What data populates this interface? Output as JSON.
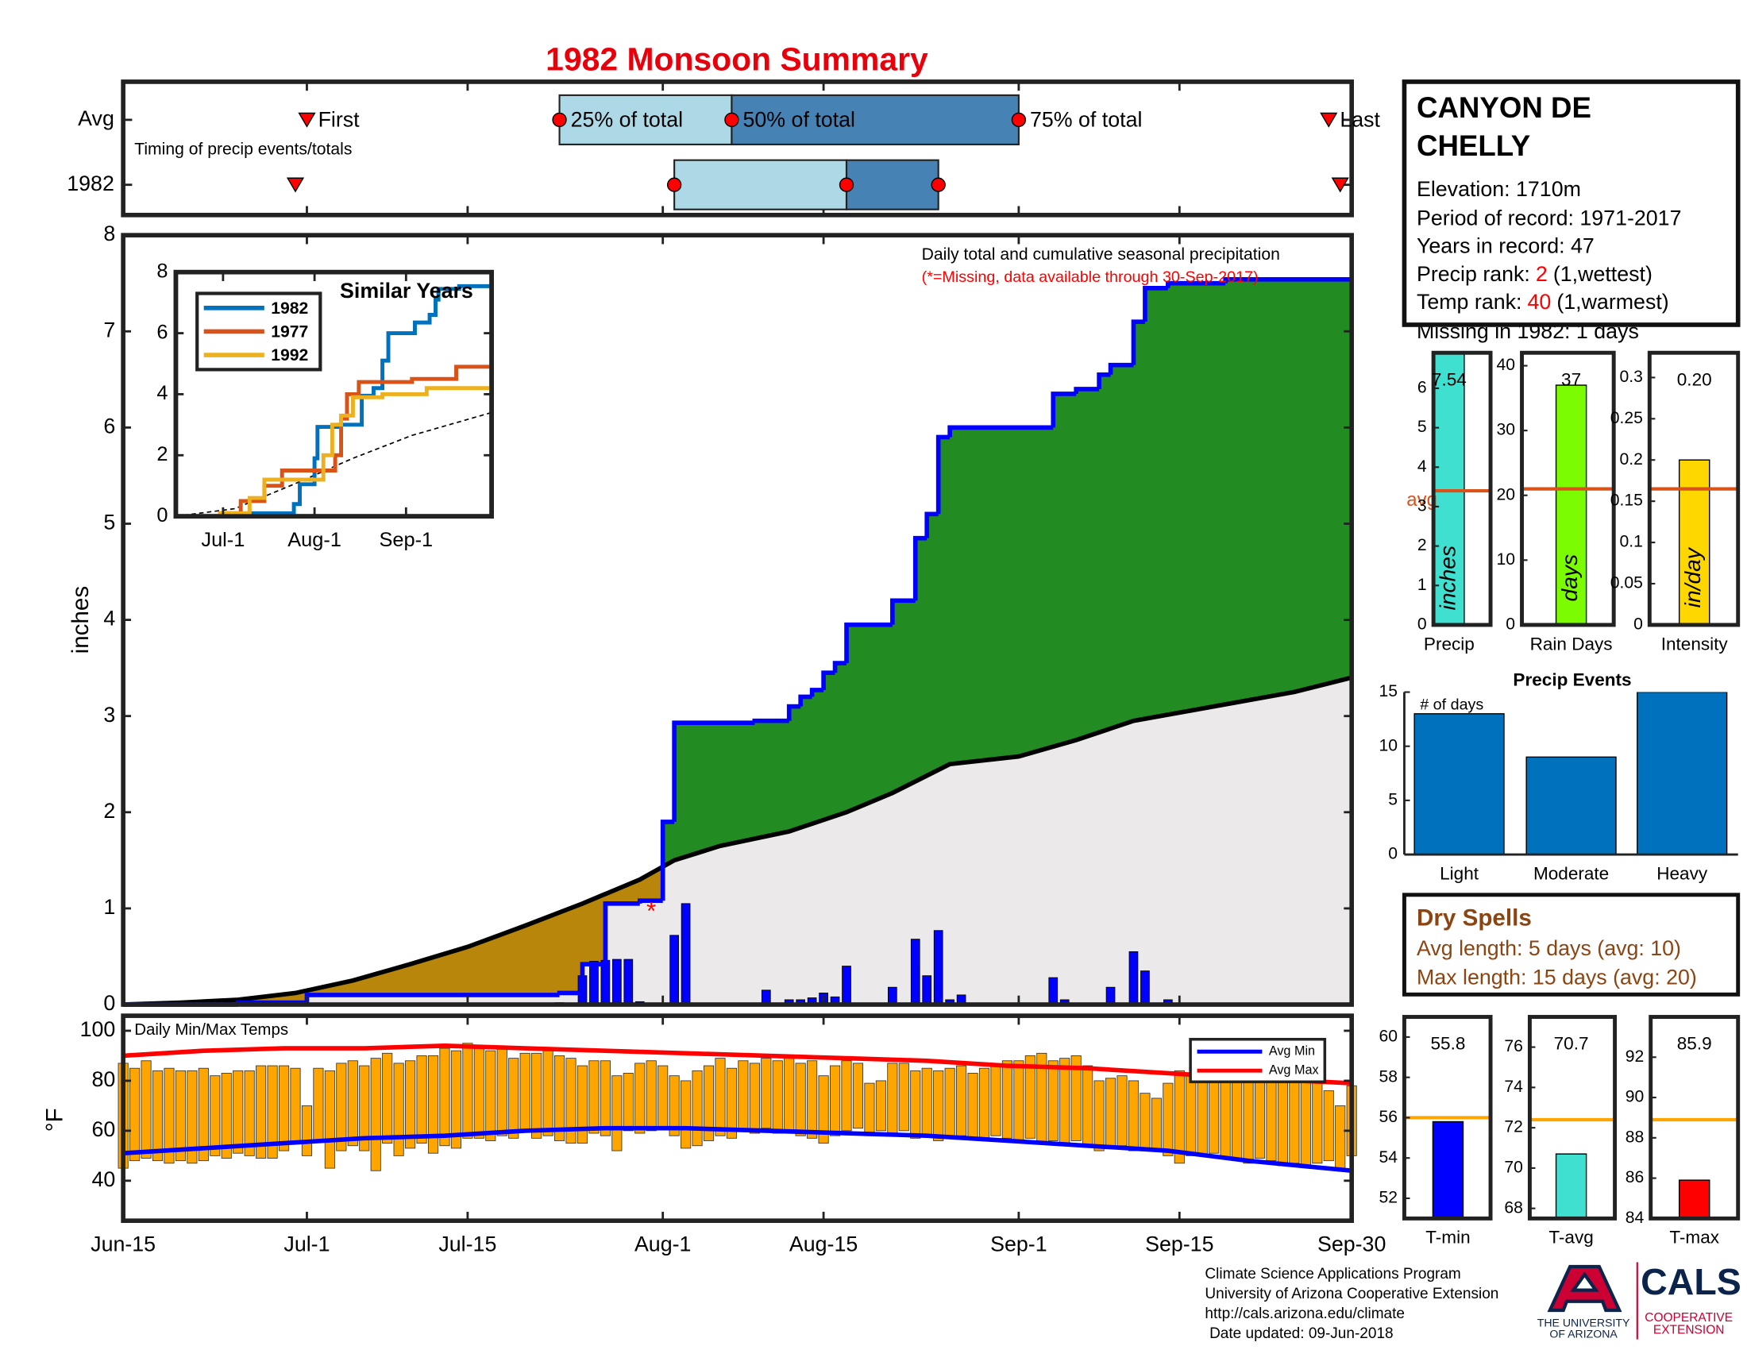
{
  "chart_data": [
    {
      "type": "timeline",
      "rows": [
        {
          "name": "Avg",
          "first": 16,
          "q25": 38,
          "q50": 53,
          "q75": 78,
          "last": 105
        },
        {
          "name": "1982",
          "first": 15,
          "q25": 48,
          "q50": 63,
          "q75": 71,
          "last": 106
        }
      ],
      "labels": {
        "first": "First",
        "q25": "25% of total",
        "q50": "50% of total",
        "q75": "75% of total",
        "last": "Last"
      },
      "note": "Timing of precip events/totals",
      "xlim": [
        0,
        107
      ],
      "xticks": [
        0,
        16,
        30,
        47,
        61,
        78,
        92,
        107
      ],
      "colors": {
        "low": "#add8e6",
        "high": "#4682b4",
        "marker": "#ff0000"
      }
    },
    {
      "type": "area",
      "title": "1982 Monsoon Summary",
      "annotation": "Daily total and cumulative seasonal precipitation",
      "note": "(*=Missing, data available through 30-Sep-2017)",
      "ylabel": "inches",
      "xlim": [
        0,
        107
      ],
      "ylim": [
        0,
        8
      ],
      "yticks": [
        0,
        1,
        2,
        3,
        4,
        5,
        6,
        7,
        8
      ],
      "xticks": [
        0,
        16,
        30,
        47,
        61,
        78,
        92,
        107
      ],
      "cumulative": {
        "color": "#0000ff",
        "x": [
          0,
          10,
          16,
          38,
          40,
          42,
          45,
          47,
          48,
          55,
          58,
          59,
          60,
          61,
          62,
          63,
          67,
          69,
          70,
          71,
          72,
          81,
          83,
          85,
          86,
          88,
          89,
          91,
          96,
          107
        ],
        "values": [
          0,
          0.02,
          0.1,
          0.12,
          0.42,
          1.05,
          1.08,
          1.9,
          2.93,
          2.95,
          3.1,
          3.2,
          3.27,
          3.45,
          3.55,
          3.95,
          4.2,
          4.85,
          5.1,
          5.9,
          6.0,
          6.35,
          6.4,
          6.55,
          6.65,
          7.1,
          7.45,
          7.5,
          7.54,
          7.54
        ]
      },
      "average": {
        "color": "#000000",
        "x": [
          0,
          5,
          10,
          15,
          20,
          25,
          30,
          35,
          40,
          45,
          48,
          52,
          58,
          63,
          67,
          72,
          78,
          83,
          88,
          95,
          102,
          107
        ],
        "values": [
          0,
          0.02,
          0.05,
          0.12,
          0.25,
          0.42,
          0.6,
          0.82,
          1.05,
          1.3,
          1.5,
          1.65,
          1.8,
          2.0,
          2.2,
          2.5,
          2.58,
          2.75,
          2.95,
          3.1,
          3.25,
          3.4
        ]
      },
      "daily": {
        "color": "#0000ff",
        "x": [
          38,
          40,
          41,
          42,
          43,
          44,
          45,
          48,
          49,
          56,
          58,
          59,
          60,
          61,
          62,
          63,
          67,
          69,
          70,
          71,
          72,
          73,
          81,
          82,
          86,
          88,
          89,
          91
        ],
        "values": [
          0.02,
          0.3,
          0.45,
          0.46,
          0.47,
          0.47,
          0.03,
          0.72,
          1.05,
          0.15,
          0.05,
          0.05,
          0.07,
          0.12,
          0.08,
          0.4,
          0.18,
          0.68,
          0.3,
          0.77,
          0.05,
          0.1,
          0.28,
          0.05,
          0.18,
          0.55,
          0.35,
          0.05
        ]
      },
      "missing": {
        "label": "*",
        "x": 46,
        "y": 1.0
      },
      "colors": {
        "surplus": "#228b22",
        "deficit": "#b8860b",
        "base": "#ebe9e9"
      }
    },
    {
      "type": "line",
      "title": "Similar Years",
      "xlim": [
        0,
        107
      ],
      "ylim": [
        0,
        8
      ],
      "yticks": [
        0,
        2,
        4,
        6,
        8
      ],
      "xticks": [
        {
          "value": 16,
          "label": "Jul-1"
        },
        {
          "value": 47,
          "label": "Aug-1"
        },
        {
          "value": 78,
          "label": "Sep-1"
        }
      ],
      "legend": "upper left",
      "series": [
        {
          "name": "1982",
          "color": "#0072bd",
          "x": [
            0,
            16,
            40,
            42,
            47,
            48,
            55,
            63,
            67,
            70,
            72,
            81,
            86,
            88,
            89,
            96,
            107
          ],
          "values": [
            0,
            0.1,
            0.4,
            1.05,
            1.9,
            2.93,
            3.0,
            3.95,
            4.2,
            5.1,
            6.0,
            6.35,
            6.6,
            7.1,
            7.45,
            7.54,
            7.54
          ]
        },
        {
          "name": "1977",
          "color": "#d95319",
          "x": [
            0,
            15,
            22,
            30,
            36,
            45,
            54,
            56,
            58,
            62,
            80,
            95,
            107
          ],
          "values": [
            0,
            0.1,
            0.5,
            1.0,
            1.5,
            1.5,
            2.0,
            3.2,
            4.0,
            4.4,
            4.5,
            4.9,
            5.05
          ]
        },
        {
          "name": "1992",
          "color": "#edb120",
          "x": [
            0,
            15,
            25,
            30,
            38,
            50,
            53,
            56,
            60,
            70,
            85,
            107
          ],
          "values": [
            0,
            0.1,
            0.6,
            1.2,
            1.2,
            2.0,
            3.0,
            3.3,
            3.9,
            4.0,
            4.2,
            4.4
          ]
        }
      ],
      "average": {
        "color": "#000000",
        "x": [
          0,
          20,
          40,
          60,
          80,
          107
        ],
        "values": [
          0,
          0.25,
          1.05,
          1.9,
          2.65,
          3.4
        ]
      }
    },
    {
      "type": "bar",
      "categories": [
        "Precip"
      ],
      "values": [
        7.54
      ],
      "value_labels": [
        "7.54"
      ],
      "color": "#40e0d0",
      "ylim": [
        0,
        6.9
      ],
      "yticks": [
        0,
        1,
        2,
        3,
        4,
        5,
        6
      ],
      "ylabel": "inches",
      "reference": {
        "label": "avg",
        "value": 3.4,
        "color": "#d95319"
      }
    },
    {
      "type": "bar",
      "categories": [
        "Rain Days"
      ],
      "values": [
        37
      ],
      "color": "#7cfc00",
      "ylim": [
        0,
        42
      ],
      "yticks": [
        0,
        10,
        20,
        30,
        40
      ],
      "ylabel": "days",
      "reference": {
        "value": 21,
        "color": "#d95319"
      }
    },
    {
      "type": "bar",
      "categories": [
        "Intensity"
      ],
      "values": [
        0.2
      ],
      "value_labels": [
        "0.20"
      ],
      "color": "#ffd700",
      "ylim": [
        0,
        0.33
      ],
      "yticks": [
        0,
        0.05,
        0.1,
        0.15,
        0.2,
        0.25,
        0.3
      ],
      "ylabel": "in/day",
      "reference": {
        "value": 0.165,
        "color": "#d95319"
      }
    },
    {
      "type": "bar",
      "title": "Precip Events",
      "note": "# of days",
      "categories": [
        "Light",
        "Moderate",
        "Heavy"
      ],
      "values": [
        13,
        9,
        15
      ],
      "color": "#0072bd",
      "ylim": [
        0,
        15
      ],
      "yticks": [
        0,
        5,
        10,
        15
      ]
    },
    {
      "type": "range_bar",
      "title": "Daily Min/Max Temps",
      "ylabel": "°F",
      "xlim": [
        0,
        107
      ],
      "ylim": [
        24,
        106
      ],
      "yticks": [
        40,
        60,
        80,
        100
      ],
      "xticks": [
        {
          "value": 0,
          "label": "Jun-15"
        },
        {
          "value": 16,
          "label": "Jul-1"
        },
        {
          "value": 30,
          "label": "Jul-15"
        },
        {
          "value": 47,
          "label": "Aug-1"
        },
        {
          "value": 61,
          "label": "Aug-15"
        },
        {
          "value": 78,
          "label": "Sep-1"
        },
        {
          "value": 92,
          "label": "Sep-15"
        },
        {
          "value": 107,
          "label": "Sep-30"
        }
      ],
      "color": "#ffa500",
      "legend": "upper right",
      "x": [
        0,
        1,
        2,
        3,
        4,
        5,
        6,
        7,
        8,
        9,
        10,
        11,
        12,
        13,
        14,
        15,
        16,
        17,
        18,
        19,
        20,
        21,
        22,
        23,
        24,
        25,
        26,
        27,
        28,
        29,
        30,
        31,
        32,
        33,
        34,
        35,
        36,
        37,
        38,
        39,
        40,
        41,
        42,
        43,
        44,
        45,
        46,
        47,
        48,
        49,
        50,
        51,
        52,
        53,
        54,
        55,
        56,
        57,
        58,
        59,
        60,
        61,
        62,
        63,
        64,
        65,
        66,
        67,
        68,
        69,
        70,
        71,
        72,
        73,
        74,
        75,
        76,
        77,
        78,
        79,
        80,
        81,
        82,
        83,
        84,
        85,
        86,
        87,
        88,
        89,
        90,
        91,
        92,
        93,
        94,
        95,
        96,
        97,
        98,
        99,
        100,
        101,
        102,
        103,
        104,
        105,
        106,
        107
      ],
      "max": [
        87,
        85,
        88,
        84,
        85,
        84,
        84,
        85,
        82,
        83,
        84,
        84,
        86,
        86,
        86,
        85,
        70,
        85,
        84,
        87,
        88,
        86,
        89,
        91,
        87,
        88,
        90,
        90,
        93,
        92,
        95,
        94,
        92,
        93,
        89,
        91,
        91,
        92,
        90,
        89,
        86,
        88,
        88,
        82,
        83,
        87,
        88,
        86,
        82,
        80,
        84,
        86,
        89,
        85,
        88,
        87,
        89,
        88,
        90,
        87,
        88,
        82,
        86,
        88,
        87,
        79,
        80,
        87,
        87,
        84,
        85,
        84,
        85,
        86,
        83,
        85,
        86,
        88,
        88,
        90,
        91,
        88,
        89,
        90,
        86,
        80,
        81,
        82,
        80,
        75,
        73,
        79,
        84,
        82,
        80,
        83,
        86,
        84,
        83,
        82,
        85,
        86,
        80,
        82,
        81,
        76,
        70,
        78
      ],
      "min": [
        45,
        48,
        49,
        48,
        47,
        48,
        47,
        48,
        50,
        49,
        51,
        50,
        49,
        49,
        52,
        55,
        50,
        56,
        45,
        52,
        54,
        52,
        44,
        55,
        50,
        53,
        55,
        51,
        54,
        53,
        57,
        57,
        56,
        58,
        57,
        60,
        57,
        58,
        56,
        55,
        55,
        59,
        58,
        52,
        60,
        59,
        60,
        61,
        58,
        53,
        54,
        56,
        58,
        57,
        60,
        59,
        61,
        59,
        60,
        58,
        57,
        55,
        58,
        60,
        61,
        58,
        60,
        59,
        60,
        57,
        58,
        56,
        57,
        58,
        57,
        56,
        58,
        57,
        56,
        57,
        55,
        56,
        55,
        56,
        54,
        52,
        53,
        54,
        52,
        53,
        52,
        50,
        47,
        50,
        50,
        51,
        49,
        48,
        47,
        49,
        48,
        46,
        47,
        46,
        47,
        48,
        44,
        50
      ],
      "series": [
        {
          "name": "Avg Min",
          "color": "#0000ff",
          "x": [
            0,
            7,
            14,
            21,
            28,
            35,
            42,
            49,
            56,
            63,
            70,
            77,
            84,
            91,
            98,
            107
          ],
          "values": [
            51,
            53,
            55,
            57,
            58,
            60,
            61,
            61,
            60,
            59,
            58,
            56,
            54,
            52,
            48,
            44
          ]
        },
        {
          "name": "Avg Max",
          "color": "#ff0000",
          "x": [
            0,
            7,
            14,
            21,
            28,
            35,
            42,
            49,
            56,
            63,
            70,
            77,
            84,
            91,
            98,
            107
          ],
          "values": [
            90,
            92,
            93,
            93,
            94,
            93,
            92,
            91,
            90,
            89,
            88,
            86,
            85,
            83,
            81,
            79
          ]
        }
      ]
    },
    {
      "type": "bar",
      "categories": [
        "T-min"
      ],
      "values": [
        55.8
      ],
      "color": "#0000ff",
      "ylim": [
        51,
        61
      ],
      "yticks": [
        52,
        54,
        56,
        58,
        60
      ],
      "reference": {
        "value": 56,
        "color": "#ffa500"
      }
    },
    {
      "type": "bar",
      "categories": [
        "T-avg"
      ],
      "values": [
        70.7
      ],
      "color": "#40e0d0",
      "ylim": [
        67.5,
        77.5
      ],
      "yticks": [
        68,
        70,
        72,
        74,
        76
      ],
      "reference": {
        "value": 72.4,
        "color": "#ffa500"
      }
    },
    {
      "type": "bar",
      "categories": [
        "T-max"
      ],
      "values": [
        85.9
      ],
      "color": "#ff0000",
      "ylim": [
        84,
        94
      ],
      "yticks": [
        84,
        86,
        88,
        90,
        92
      ],
      "reference": {
        "value": 88.9,
        "color": "#ffa500"
      }
    }
  ],
  "info": {
    "title_lines": [
      "CANYON DE",
      "CHELLY"
    ],
    "elevation": "Elevation: 1710m",
    "period": "Period of record: 1971-2017",
    "years": "Years in record: 47",
    "precip_rank": {
      "prefix": "Precip rank:",
      "rank": "2",
      "suffix": "(1,wettest)"
    },
    "temp_rank": {
      "prefix": "Temp rank:",
      "rank": "40",
      "suffix": "(1,warmest)"
    },
    "missing": "Missing in 1982: 1 days"
  },
  "dry_spells": {
    "title": "Dry Spells",
    "avg": "Avg length: 5 days (avg: 10)",
    "max": "Max length: 15 days (avg: 20)"
  },
  "footer": [
    "Climate Science Applications Program",
    "University of Arizona Cooperative Extension",
    "http://cals.arizona.edu/climate",
    "Date updated: 09-Jun-2018"
  ],
  "logo": {
    "university": [
      "THE UNIVERSITY",
      "OF ARIZONA"
    ],
    "cals": "CALS",
    "extension": [
      "COOPERATIVE",
      "EXTENSION"
    ]
  }
}
